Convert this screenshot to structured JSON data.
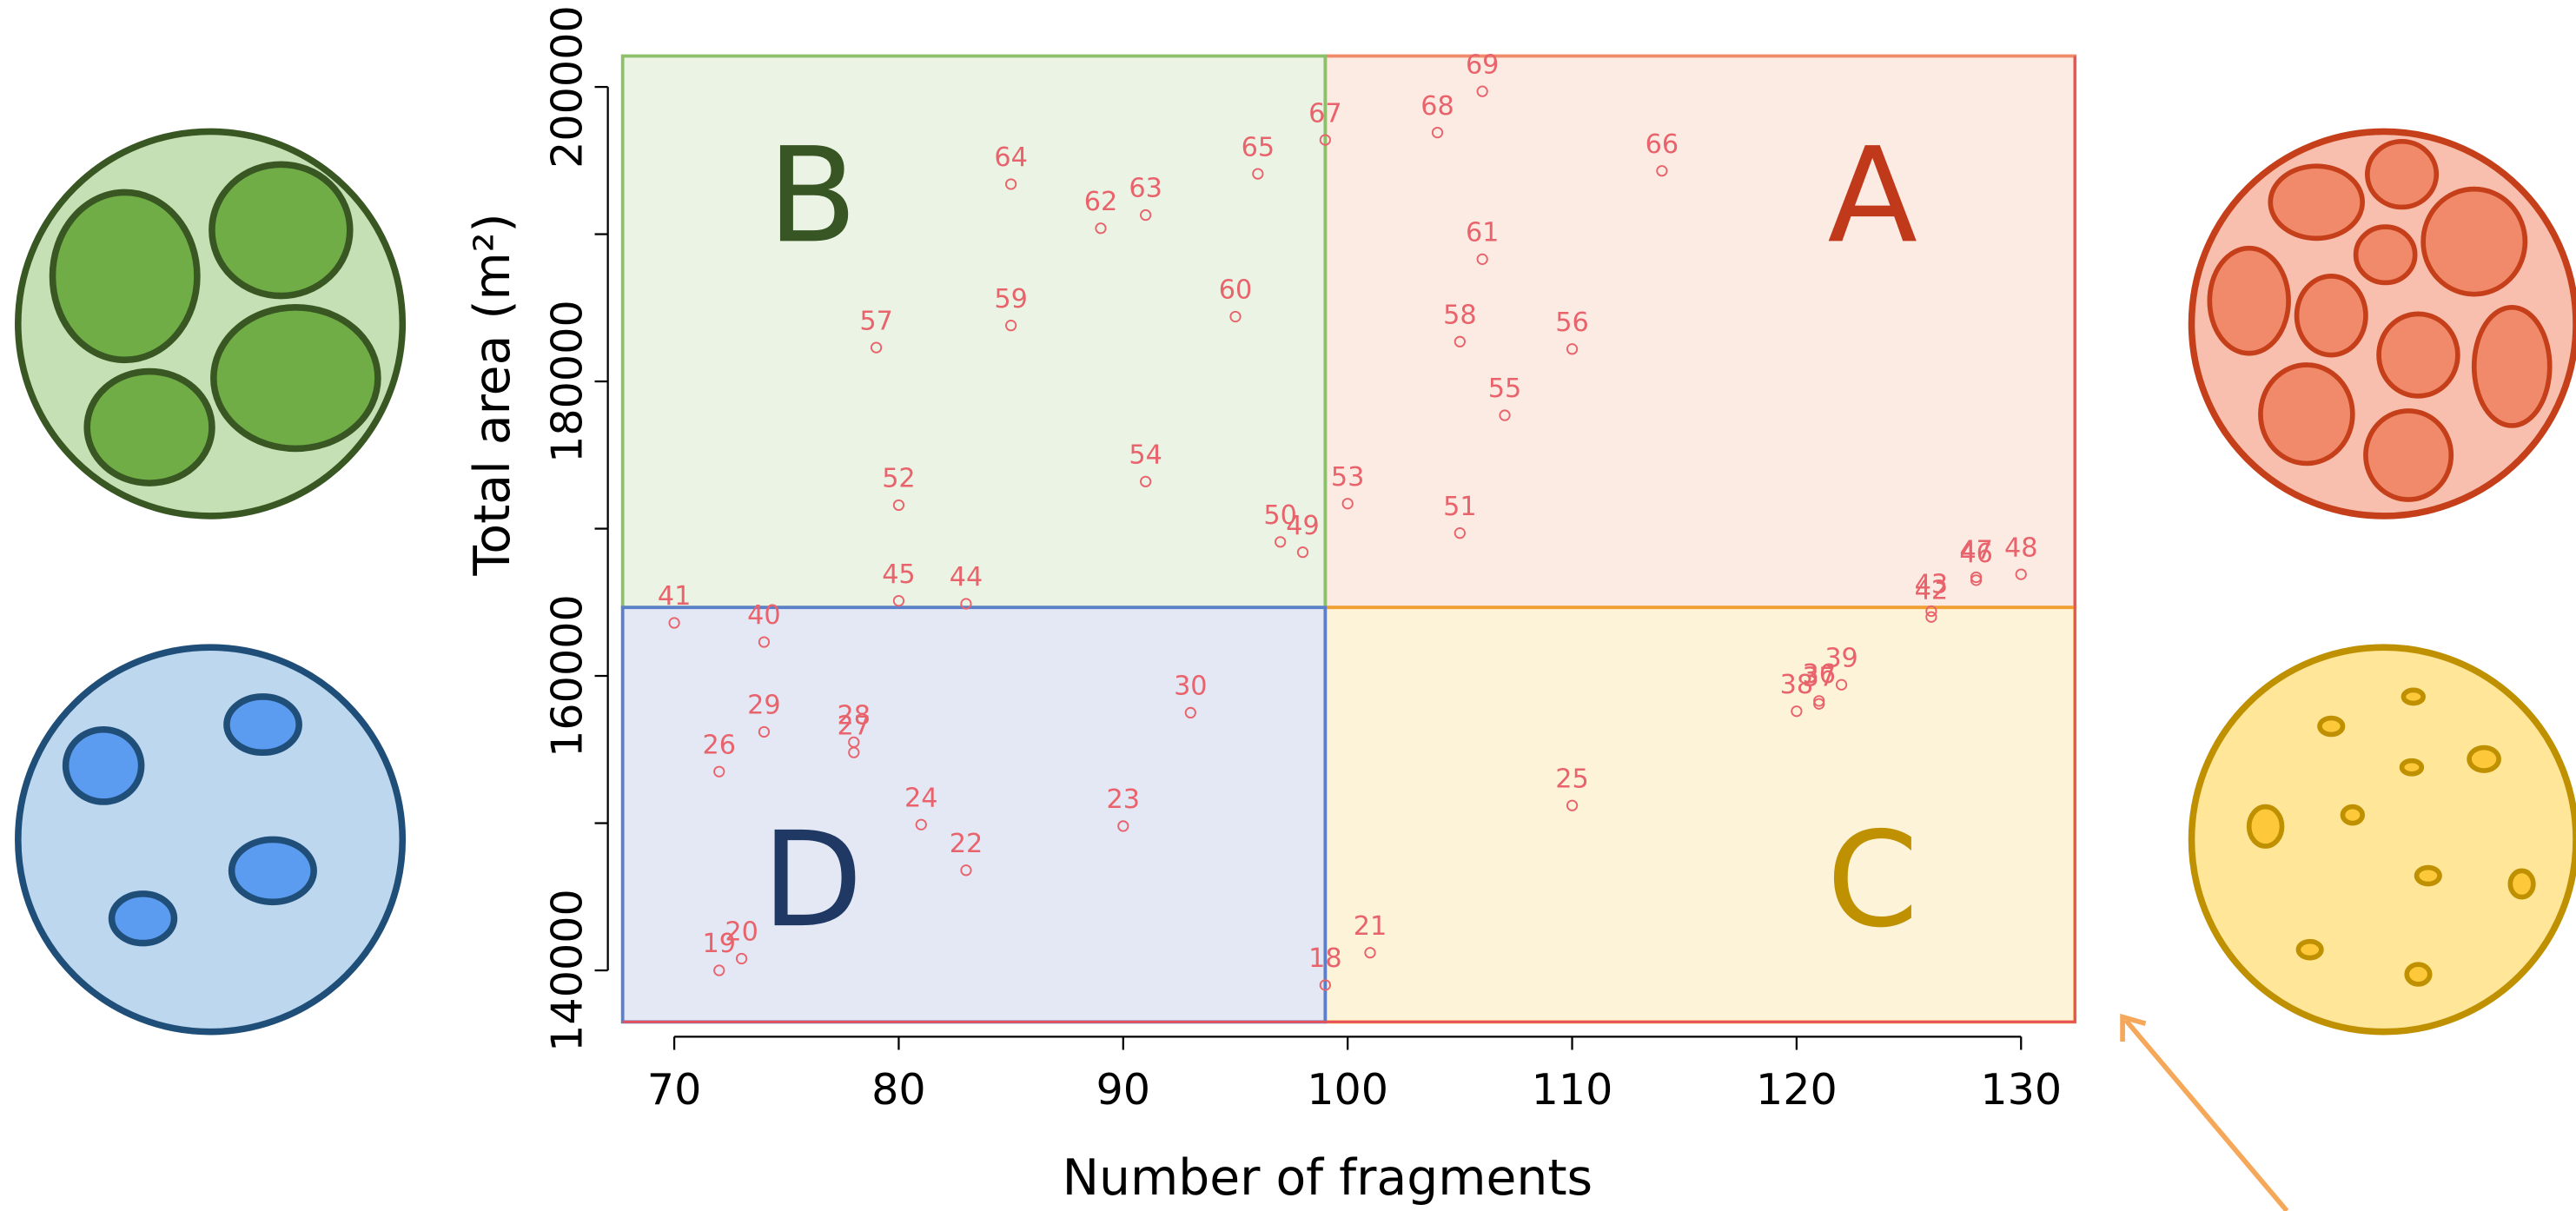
{
  "chart_data": {
    "type": "scatter",
    "xlabel": "Number of fragments",
    "ylabel": "Total area (m²)",
    "xlim": [
      67.7,
      132.4
    ],
    "ylim": [
      136500,
      202100
    ],
    "xticks": [
      70,
      80,
      90,
      100,
      110,
      120,
      130
    ],
    "yticks": [
      140000,
      160000,
      180000,
      200000
    ],
    "yminor_ticks": [
      150000,
      170000,
      190000
    ],
    "color": "#e8636b",
    "labels": [
      "69",
      "68",
      "67",
      "66",
      "65",
      "64",
      "63",
      "62",
      "61",
      "60",
      "59",
      "58",
      "57",
      "56",
      "55",
      "54",
      "53",
      "52",
      "51",
      "50",
      "49",
      "48",
      "47",
      "46",
      "45",
      "44",
      "43",
      "42",
      "41",
      "40",
      "39",
      "38",
      "37",
      "36",
      "30",
      "29",
      "28",
      "27",
      "26",
      "25",
      "24",
      "23",
      "22",
      "21",
      "20",
      "19",
      "18"
    ],
    "x": [
      106,
      104,
      99,
      114,
      96,
      85,
      91,
      89,
      106,
      95,
      85,
      105,
      79,
      110,
      107,
      91,
      100,
      80,
      105,
      97,
      98,
      130,
      128,
      128,
      80,
      83,
      126,
      126,
      70,
      74,
      122,
      120,
      121,
      121,
      93,
      74,
      78,
      78,
      72,
      110,
      81,
      90,
      83,
      101,
      73,
      72,
      99
    ],
    "y": [
      199700,
      196900,
      196400,
      194300,
      194100,
      193400,
      191300,
      190400,
      188300,
      184400,
      183800,
      182700,
      182300,
      182200,
      177700,
      173200,
      171700,
      171600,
      169700,
      169100,
      168400,
      166900,
      166700,
      166500,
      165100,
      164900,
      164400,
      164000,
      163600,
      162300,
      159400,
      157600,
      158100,
      158300,
      157500,
      156200,
      155500,
      154800,
      153500,
      151200,
      149900,
      149800,
      146800,
      141200,
      140800,
      140000,
      139000
    ],
    "split": {
      "x": 99,
      "y": 164650
    },
    "regions": [
      {
        "label": "A",
        "position": "upper-right",
        "fill": "#fcebe3",
        "stroke": "#ef8a6a",
        "text_color": "#c0391b"
      },
      {
        "label": "B",
        "position": "upper-left",
        "fill": "#ebf4e4",
        "stroke": "#8cc06a",
        "text_color": "#375623"
      },
      {
        "label": "C",
        "position": "lower-right",
        "fill": "#fdf3d8",
        "stroke": "#f0a030",
        "text_color": "#bf9000"
      },
      {
        "label": "D",
        "position": "lower-left",
        "fill": "#e4e8f5",
        "stroke": "#5b7fc8",
        "text_color": "#1f3864"
      }
    ]
  }
}
